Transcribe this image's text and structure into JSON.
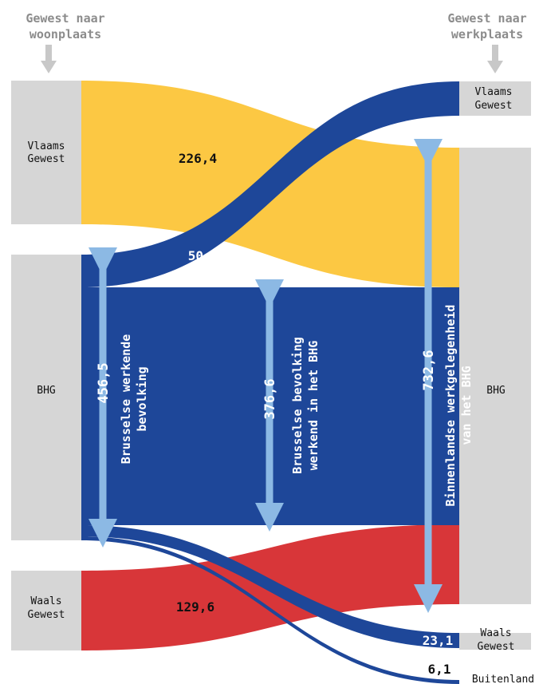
{
  "headers": {
    "left": [
      "Gewest naar",
      "woonplaats"
    ],
    "right": [
      "Gewest naar",
      "werkplaats"
    ]
  },
  "left_nodes": {
    "vlaams": [
      "Vlaams",
      "Gewest"
    ],
    "bhg": "BHG",
    "waals": [
      "Waals",
      "Gewest"
    ]
  },
  "right_nodes": {
    "vlaams": [
      "Vlaams",
      "Gewest"
    ],
    "bhg": "BHG",
    "waals": [
      "Waals",
      "Gewest"
    ],
    "buitenland": "Buitenland"
  },
  "flows": {
    "vlaams_to_bhg": "226,4",
    "bhg_to_vlaams": "50,7",
    "waals_to_bhg": "129,6",
    "bhg_to_waals": "23,1",
    "bhg_to_buitenland": "6,1"
  },
  "measures": {
    "working_population": {
      "value": "456,5",
      "label": [
        "Brusselse werkende",
        "bevolking"
      ]
    },
    "working_in_bhg": {
      "value": "376,6",
      "label": [
        "Brusselse bevolking",
        "werkend in het BHG"
      ]
    },
    "domestic_employment": {
      "value": "732,6",
      "label": [
        "Binnenlandse werkgelegenheid",
        "van het BHG"
      ]
    }
  },
  "colors": {
    "vlaams": "#fcc843",
    "bhg": "#1e4799",
    "waals": "#d83639",
    "node": "#d6d6d6",
    "arrow": "#8cb9e4",
    "header_arrow": "#c8c8c8"
  }
}
